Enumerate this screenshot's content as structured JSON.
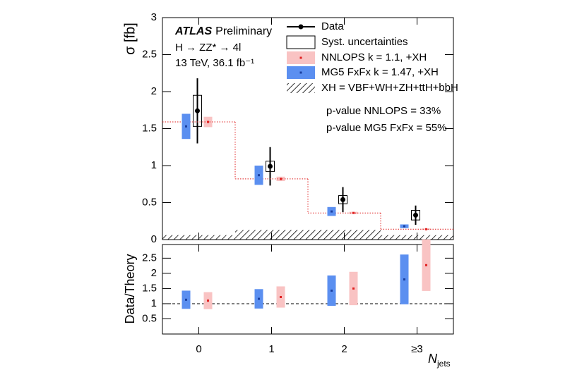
{
  "chart_data": [
    {
      "type": "errorbar",
      "y_label": "σ [fb]",
      "ylim": [
        0,
        3
      ],
      "yticks": [
        0,
        0.5,
        1,
        1.5,
        2,
        2.5,
        3
      ],
      "categories": [
        "0",
        "1",
        "2",
        "≥3"
      ],
      "experiment": "ATLAS",
      "status": "Preliminary",
      "process": "H → ZZ* → 4l",
      "energy": "13 TeV, 36.1 fb⁻¹",
      "legend_syst": "Syst. uncertainties",
      "annotations": [
        "p-value NNLOPS = 33%",
        "p-value MG5 FxFx = 55%"
      ],
      "series": [
        {
          "name": "Data",
          "style": "point",
          "color": "#000000",
          "values": [
            1.74,
            0.99,
            0.54,
            0.33
          ],
          "errors": [
            0.44,
            0.26,
            0.17,
            0.13
          ],
          "syst_errors": [
            0.21,
            0.07,
            0.055,
            0.065
          ]
        },
        {
          "name": "NNLOPS k = 1.1, +XH",
          "style": "band",
          "step": true,
          "color": "#f9c3c3",
          "marker_color": "#e02020",
          "values": [
            1.59,
            0.82,
            0.36,
            0.14
          ],
          "errors": [
            0.07,
            0.03,
            0.015,
            0.01
          ]
        },
        {
          "name": "MG5 FxFx k = 1.47, +XH",
          "style": "band",
          "color": "#5b8ff0",
          "marker_color": "#1a3fa0",
          "values": [
            1.53,
            0.87,
            0.38,
            0.18
          ],
          "errors": [
            0.17,
            0.13,
            0.06,
            0.025
          ]
        },
        {
          "name": "XH = VBF+WH+ZH+ttH+bbH",
          "style": "hatch",
          "color": "#000000",
          "values": [
            0.06,
            0.13,
            0.13,
            0.06
          ]
        }
      ]
    },
    {
      "type": "errorbar",
      "y_label": "Data/Theory",
      "x_label": "N",
      "x_label_sub": "jets",
      "ylim": [
        0,
        2.95
      ],
      "yticks": [
        0.5,
        1,
        1.5,
        2,
        2.5
      ],
      "reference_line": 1,
      "categories": [
        "0",
        "1",
        "2",
        "≥3"
      ],
      "series": [
        {
          "style": "band",
          "color": "#5b8ff0",
          "marker_color": "#1a3fa0",
          "values": [
            1.13,
            1.16,
            1.43,
            1.8
          ],
          "errors": [
            0.3,
            0.32,
            0.5,
            0.82
          ]
        },
        {
          "style": "band",
          "color": "#f9c3c3",
          "marker_color": "#e02020",
          "values": [
            1.1,
            1.22,
            1.5,
            2.27
          ],
          "errors": [
            0.28,
            0.35,
            0.55,
            0.85
          ]
        }
      ]
    }
  ]
}
